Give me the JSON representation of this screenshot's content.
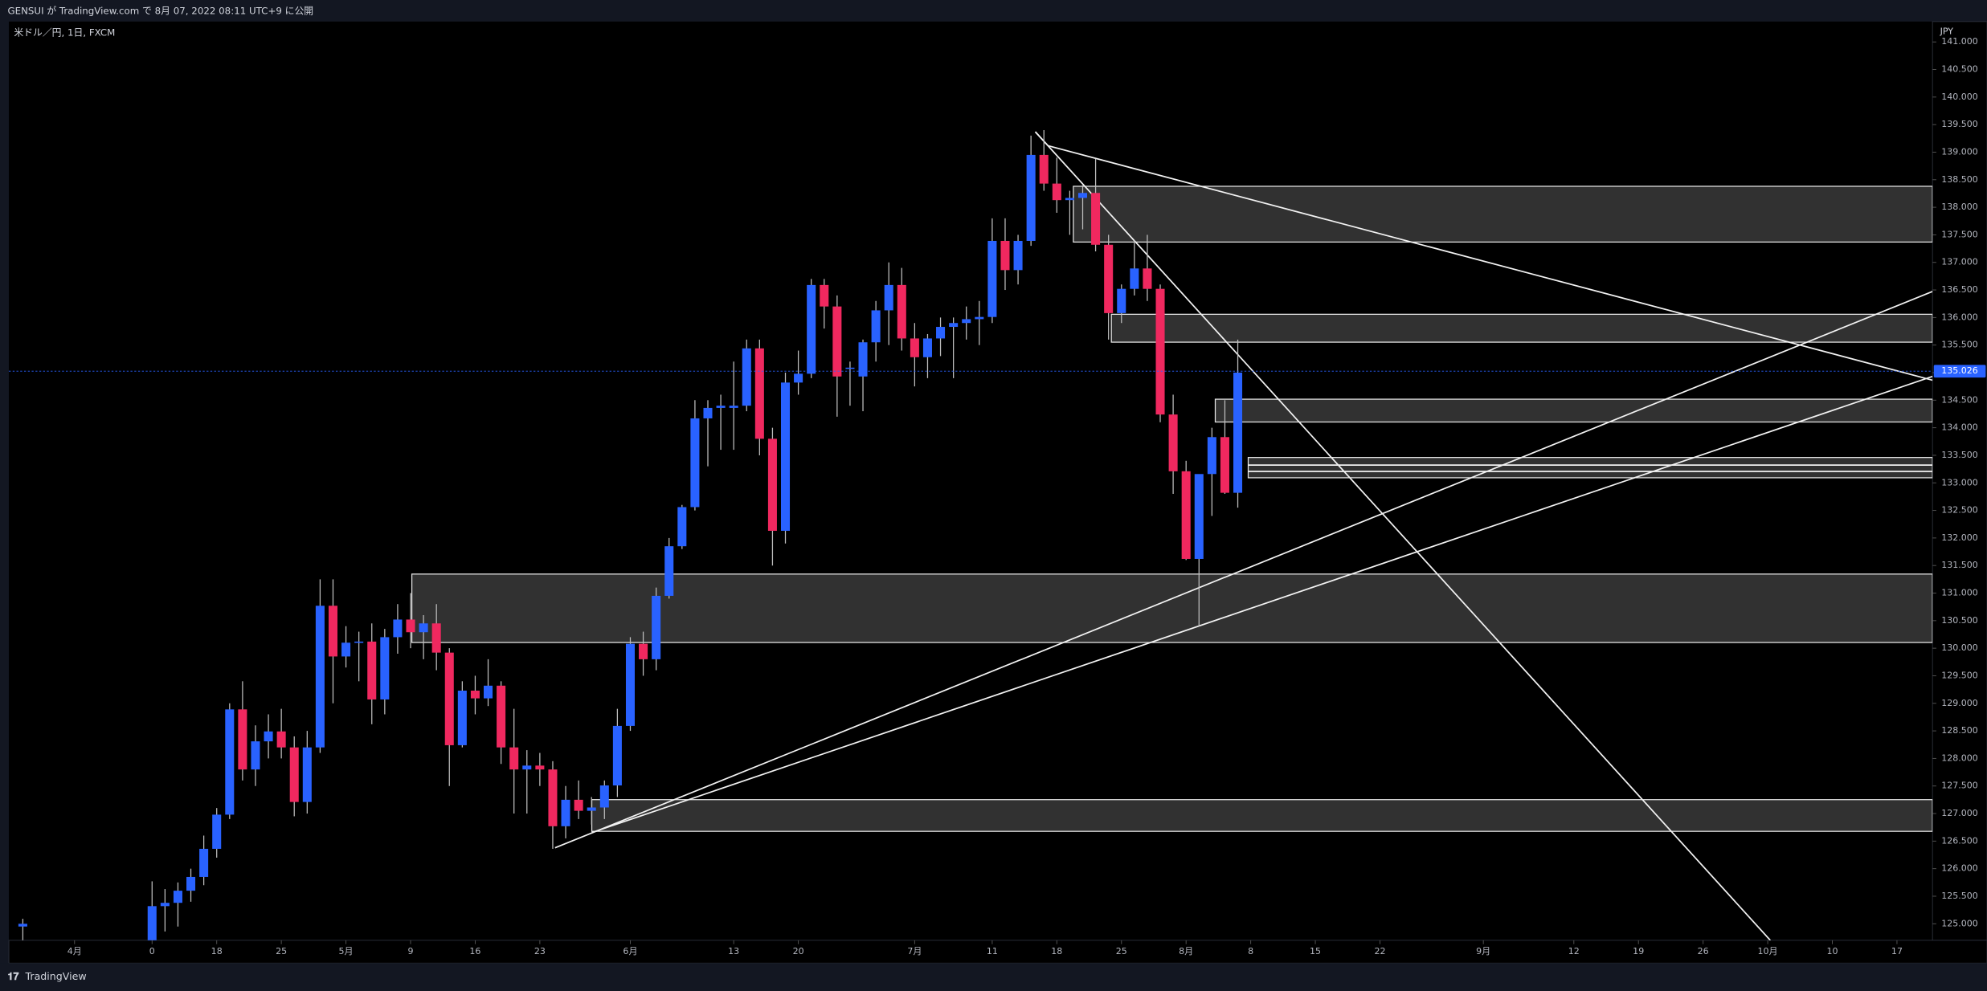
{
  "header": {
    "text": "GENSUI が TradingView.com で 8月 07, 2022 08:11 UTC+9 に公開"
  },
  "footer": {
    "text": "TradingView"
  },
  "chart_data": {
    "type": "candlestick",
    "title": "米ドル／円, 1日, FXCM",
    "y_axis_label": "JPY",
    "up_color": "#2962ff",
    "down_color": "#f0285f",
    "wick_color": "#bdbdbd",
    "last_price": 135.026,
    "x": [
      -10,
      0,
      1,
      2,
      3,
      4,
      5,
      6,
      7,
      8,
      9,
      10,
      11,
      12,
      13,
      14,
      15,
      16,
      17,
      18,
      19,
      20,
      21,
      22,
      23,
      24,
      25,
      26,
      27,
      28,
      29,
      30,
      31,
      32,
      33,
      34,
      35,
      36,
      37,
      38,
      39,
      40,
      41,
      42,
      43,
      44,
      45,
      46,
      47,
      48,
      49,
      50,
      51,
      52,
      53,
      54,
      55,
      56,
      57,
      58,
      59,
      60,
      61,
      62,
      63,
      64,
      65,
      66,
      67,
      68,
      69,
      70,
      71,
      72,
      73,
      74,
      75,
      76,
      77,
      78,
      79,
      80,
      81,
      82,
      83,
      84
    ],
    "open": [
      124.95,
      124.7,
      125.32,
      125.38,
      125.6,
      125.85,
      126.36,
      126.98,
      128.89,
      127.8,
      128.31,
      128.49,
      128.2,
      127.21,
      128.2,
      130.77,
      129.85,
      130.1,
      130.12,
      129.07,
      130.2,
      130.52,
      130.29,
      130.45,
      129.92,
      128.24,
      129.23,
      129.09,
      129.32,
      128.2,
      127.8,
      127.87,
      127.8,
      126.77,
      127.25,
      127.05,
      127.11,
      127.51,
      128.59,
      130.08,
      129.8,
      130.95,
      131.85,
      132.56,
      134.17,
      134.36,
      134.36,
      134.4,
      135.44,
      133.8,
      132.13,
      134.82,
      134.98,
      136.59,
      136.2,
      135.09,
      134.93,
      135.55,
      136.13,
      136.59,
      135.62,
      135.28,
      135.62,
      135.83,
      135.9,
      135.97,
      136.01,
      137.39,
      136.86,
      137.39,
      138.95,
      138.43,
      138.13,
      138.17,
      138.26,
      137.32,
      136.08,
      136.52,
      136.89,
      136.52,
      134.24,
      133.21,
      131.62,
      133.16,
      133.83,
      132.82
    ],
    "high": [
      125.09,
      125.77,
      125.63,
      125.75,
      126.0,
      126.6,
      127.1,
      129.0,
      129.4,
      128.6,
      128.8,
      128.9,
      128.4,
      128.5,
      131.25,
      131.25,
      130.4,
      130.3,
      130.45,
      130.35,
      130.8,
      131.0,
      130.6,
      130.8,
      130.0,
      129.4,
      129.5,
      129.8,
      129.4,
      128.9,
      128.15,
      128.1,
      127.95,
      127.5,
      127.6,
      127.3,
      127.6,
      128.9,
      130.2,
      130.3,
      131.1,
      132.0,
      132.6,
      134.5,
      134.5,
      134.6,
      135.2,
      135.6,
      135.6,
      134.0,
      135.0,
      135.4,
      136.7,
      136.7,
      136.4,
      135.2,
      135.6,
      136.3,
      137.0,
      136.9,
      135.9,
      135.7,
      136.0,
      136.0,
      136.2,
      136.3,
      137.8,
      137.8,
      137.5,
      139.3,
      139.4,
      138.9,
      138.3,
      138.4,
      138.88,
      137.5,
      136.6,
      137.4,
      137.5,
      136.6,
      134.6,
      133.4,
      133.1,
      134.0,
      134.5,
      135.6
    ],
    "low": [
      124.7,
      124.6,
      124.86,
      124.95,
      125.4,
      125.7,
      126.2,
      126.9,
      127.6,
      127.5,
      128.0,
      128.0,
      126.95,
      127.0,
      128.1,
      129.0,
      129.65,
      129.4,
      128.62,
      128.8,
      129.9,
      130.0,
      129.8,
      129.6,
      127.5,
      128.2,
      128.8,
      128.95,
      127.9,
      127.0,
      127.0,
      127.5,
      126.36,
      126.55,
      126.9,
      126.8,
      126.9,
      127.3,
      128.5,
      129.5,
      129.6,
      130.9,
      131.8,
      132.5,
      133.3,
      133.6,
      133.6,
      134.3,
      133.5,
      131.5,
      131.9,
      134.6,
      134.9,
      135.8,
      134.2,
      134.4,
      134.3,
      135.2,
      135.5,
      135.4,
      134.75,
      134.9,
      135.3,
      134.9,
      135.6,
      135.5,
      135.9,
      136.5,
      136.6,
      137.3,
      138.3,
      137.9,
      137.5,
      137.6,
      137.2,
      135.6,
      135.9,
      136.4,
      136.3,
      134.1,
      132.8,
      131.6,
      130.4,
      132.4,
      132.8,
      132.55
    ],
    "close": [
      125.0,
      125.32,
      125.38,
      125.6,
      125.85,
      126.36,
      126.98,
      128.89,
      127.8,
      128.31,
      128.49,
      128.2,
      127.21,
      128.2,
      130.77,
      129.85,
      130.1,
      130.12,
      129.07,
      130.2,
      130.52,
      130.29,
      130.45,
      129.92,
      128.24,
      129.23,
      129.09,
      129.32,
      128.2,
      127.8,
      127.87,
      127.8,
      126.77,
      127.25,
      127.05,
      127.11,
      127.51,
      128.59,
      130.08,
      129.8,
      130.95,
      131.85,
      132.56,
      134.17,
      134.36,
      134.4,
      134.4,
      135.44,
      133.8,
      132.13,
      134.82,
      134.98,
      136.59,
      136.2,
      134.93,
      135.09,
      135.55,
      136.13,
      136.59,
      135.62,
      135.28,
      135.62,
      135.83,
      135.9,
      135.97,
      136.01,
      137.39,
      136.86,
      137.39,
      138.95,
      138.43,
      138.13,
      138.17,
      138.26,
      137.32,
      136.08,
      136.52,
      136.89,
      136.52,
      134.24,
      133.21,
      131.62,
      133.16,
      133.83,
      132.82,
      135.0
    ],
    "xlim": [
      -11.08,
      137.75
    ],
    "xticks": [
      {
        "value": -6,
        "label": "4月"
      },
      0,
      {
        "value": 5,
        "label": "18"
      },
      {
        "value": 10,
        "label": "25"
      },
      {
        "value": 15,
        "label": "5月"
      },
      {
        "value": 20,
        "label": "9"
      },
      {
        "value": 25,
        "label": "16"
      },
      {
        "value": 30,
        "label": "23"
      },
      {
        "value": 37,
        "label": "6月"
      },
      {
        "value": 45,
        "label": "13"
      },
      {
        "value": 50,
        "label": "20"
      },
      {
        "value": 59,
        "label": "7月"
      },
      {
        "value": 65,
        "label": "11"
      },
      {
        "value": 70,
        "label": "18"
      },
      {
        "value": 75,
        "label": "25"
      },
      {
        "value": 80,
        "label": "8月"
      },
      {
        "value": 85,
        "label": "8"
      },
      {
        "value": 90,
        "label": "15"
      },
      {
        "value": 95,
        "label": "22"
      },
      {
        "value": 103,
        "label": "9月"
      },
      {
        "value": 110,
        "label": "12"
      },
      {
        "value": 115,
        "label": "19"
      },
      {
        "value": 120,
        "label": "26"
      },
      {
        "value": 125,
        "label": "10月"
      },
      {
        "value": 130,
        "label": "10"
      },
      {
        "value": 135,
        "label": "17"
      }
    ],
    "ylim": [
      124.7,
      141.37
    ],
    "yticks": [
      {
        "value": 125,
        "label": "125.000"
      },
      {
        "value": 125.5,
        "label": "125.500"
      },
      {
        "value": 126,
        "label": "126.000"
      },
      {
        "value": 126.5,
        "label": "126.500"
      },
      {
        "value": 127,
        "label": "127.000"
      },
      {
        "value": 127.5,
        "label": "127.500"
      },
      {
        "value": 128,
        "label": "128.000"
      },
      {
        "value": 128.5,
        "label": "128.500"
      },
      {
        "value": 129,
        "label": "129.000"
      },
      {
        "value": 129.5,
        "label": "129.500"
      },
      {
        "value": 130,
        "label": "130.000"
      },
      {
        "value": 130.5,
        "label": "130.500"
      },
      {
        "value": 131,
        "label": "131.000"
      },
      {
        "value": 131.5,
        "label": "131.500"
      },
      {
        "value": 132,
        "label": "132.000"
      },
      {
        "value": 132.5,
        "label": "132.500"
      },
      {
        "value": 133,
        "label": "133.000"
      },
      {
        "value": 133.5,
        "label": "133.500"
      },
      {
        "value": 134,
        "label": "134.000"
      },
      {
        "value": 134.5,
        "label": "134.500"
      },
      {
        "value": 135,
        "label": "135.000"
      },
      {
        "value": 135.5,
        "label": "135.500"
      },
      {
        "value": 136,
        "label": "136.000"
      },
      {
        "value": 136.5,
        "label": "136.500"
      },
      {
        "value": 137,
        "label": "137.000"
      },
      {
        "value": 137.5,
        "label": "137.500"
      },
      {
        "value": 138,
        "label": "138.000"
      },
      {
        "value": 138.5,
        "label": "138.500"
      },
      {
        "value": 139,
        "label": "139.000"
      },
      {
        "value": 139.5,
        "label": "139.500"
      },
      {
        "value": 140,
        "label": "140.000"
      },
      {
        "value": 140.5,
        "label": "140.500"
      },
      {
        "value": 141,
        "label": "141.000"
      }
    ]
  }
}
